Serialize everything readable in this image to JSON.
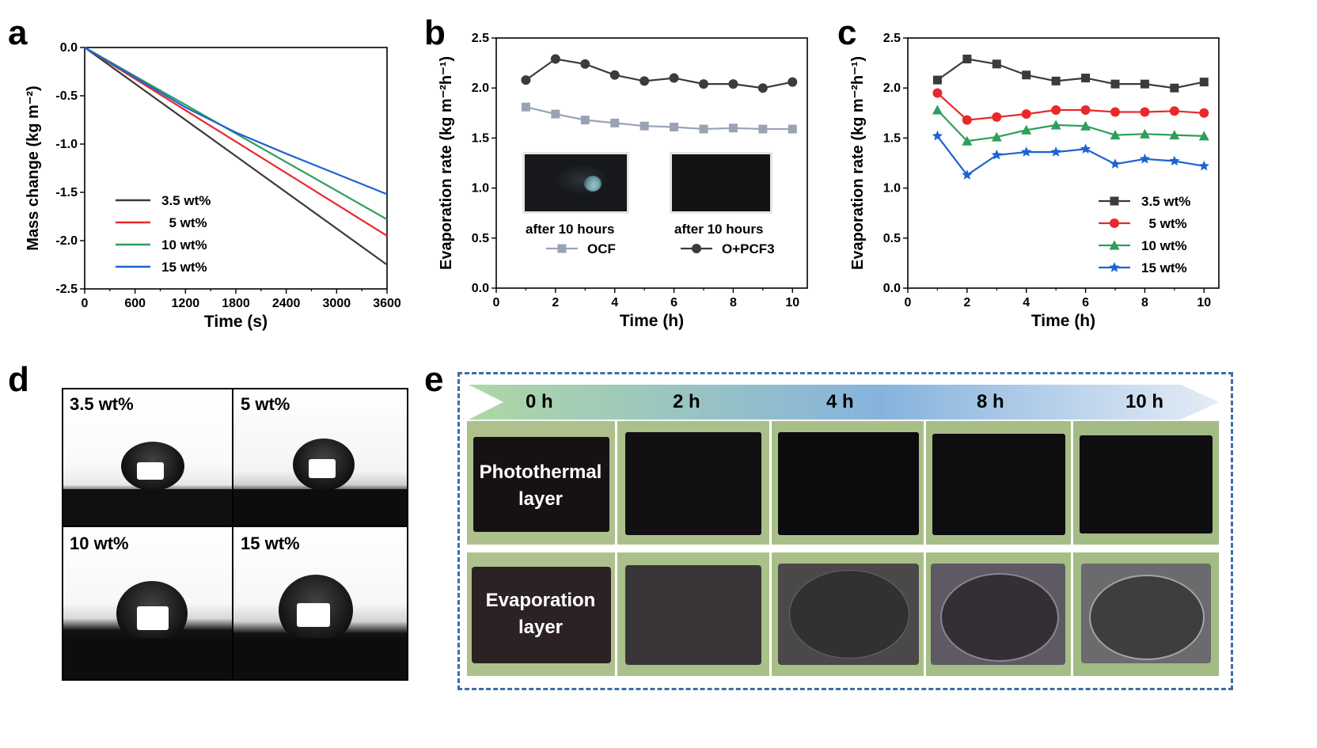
{
  "panels": {
    "a": "a",
    "b": "b",
    "c": "c",
    "d": "d",
    "e": "e"
  },
  "colors": {
    "black_series": "#3b3b3b",
    "red_series": "#e8282b",
    "green_series": "#2e9e5b",
    "blue_series": "#1f63d1",
    "ocf": "#9aa3b5",
    "opcf3": "#3b3b3b",
    "frame_dash": "#3d6fa4",
    "sample_bg": "#a8bf87"
  },
  "chart_data": [
    {
      "id": "a",
      "type": "line",
      "xlabel": "Time (s)",
      "ylabel": "Mass change (kg m⁻²)",
      "xlim": [
        0,
        3600
      ],
      "ylim": [
        -2.5,
        0.0
      ],
      "xticks": [
        "0",
        "600",
        "1200",
        "1800",
        "2400",
        "3000",
        "3600"
      ],
      "xtick_values": [
        0,
        600,
        1200,
        1800,
        2400,
        3000,
        3600
      ],
      "yticks": [
        "0.0",
        "-0.5",
        "-1.0",
        "-1.5",
        "-2.0",
        "-2.5"
      ],
      "ytick_values": [
        0.0,
        -0.5,
        -1.0,
        -1.5,
        -2.0,
        -2.5
      ],
      "legend_position": "bottom-left",
      "series": [
        {
          "name": "3.5 wt%",
          "x": [
            0,
            3600
          ],
          "y": [
            0.0,
            -2.25
          ]
        },
        {
          "name": "  5 wt%",
          "x": [
            0,
            3600
          ],
          "y": [
            0.0,
            -1.95
          ]
        },
        {
          "name": "10 wt%",
          "x": [
            0,
            3600
          ],
          "y": [
            0.0,
            -1.78
          ]
        },
        {
          "name": "15 wt%",
          "x": [
            0,
            1200,
            1800,
            2400,
            3600
          ],
          "y": [
            0.0,
            -0.62,
            -0.88,
            -1.1,
            -1.52
          ]
        }
      ]
    },
    {
      "id": "b",
      "type": "line",
      "xlabel": "Time (h)",
      "ylabel": "Evaporation rate (kg m⁻²h⁻¹)",
      "xlim": [
        0,
        10.5
      ],
      "ylim": [
        0.0,
        2.5
      ],
      "xticks": [
        "0",
        "2",
        "4",
        "6",
        "8",
        "10"
      ],
      "xtick_values": [
        0,
        2,
        4,
        6,
        8,
        10
      ],
      "yticks": [
        "0.0",
        "0.5",
        "1.0",
        "1.5",
        "2.0",
        "2.5"
      ],
      "ytick_values": [
        0.0,
        0.5,
        1.0,
        1.5,
        2.0,
        2.5
      ],
      "legend_position": "bottom",
      "x": [
        1,
        2,
        3,
        4,
        5,
        6,
        7,
        8,
        9,
        10
      ],
      "series": [
        {
          "name": "OCF",
          "marker": "square",
          "values": [
            1.81,
            1.74,
            1.68,
            1.65,
            1.62,
            1.61,
            1.59,
            1.6,
            1.59,
            1.59
          ]
        },
        {
          "name": "O+PCF3",
          "marker": "circle",
          "values": [
            2.08,
            2.29,
            2.24,
            2.13,
            2.07,
            2.1,
            2.04,
            2.04,
            2.0,
            2.06
          ]
        }
      ],
      "insets": [
        {
          "caption": "after 10 hours"
        },
        {
          "caption": "after 10 hours"
        }
      ]
    },
    {
      "id": "c",
      "type": "line",
      "xlabel": "Time (h)",
      "ylabel": "Evaporation rate (kg m⁻²h⁻¹)",
      "xlim": [
        0,
        10.5
      ],
      "ylim": [
        0.0,
        2.5
      ],
      "xticks": [
        "0",
        "2",
        "4",
        "6",
        "8",
        "10"
      ],
      "xtick_values": [
        0,
        2,
        4,
        6,
        8,
        10
      ],
      "yticks": [
        "0.0",
        "0.5",
        "1.0",
        "1.5",
        "2.0",
        "2.5"
      ],
      "ytick_values": [
        0.0,
        0.5,
        1.0,
        1.5,
        2.0,
        2.5
      ],
      "legend_position": "bottom-right",
      "x": [
        1,
        2,
        3,
        4,
        5,
        6,
        7,
        8,
        9,
        10
      ],
      "series": [
        {
          "name": "3.5 wt%",
          "marker": "square",
          "values": [
            2.08,
            2.29,
            2.24,
            2.13,
            2.07,
            2.1,
            2.04,
            2.04,
            2.0,
            2.06
          ]
        },
        {
          "name": "  5 wt%",
          "marker": "circle",
          "values": [
            1.95,
            1.68,
            1.71,
            1.74,
            1.78,
            1.78,
            1.76,
            1.76,
            1.77,
            1.75
          ]
        },
        {
          "name": "10 wt%",
          "marker": "triangle",
          "values": [
            1.78,
            1.47,
            1.51,
            1.58,
            1.63,
            1.62,
            1.53,
            1.54,
            1.53,
            1.52
          ]
        },
        {
          "name": "15 wt%",
          "marker": "star",
          "values": [
            1.52,
            1.13,
            1.33,
            1.36,
            1.36,
            1.39,
            1.24,
            1.29,
            1.27,
            1.22
          ]
        }
      ]
    }
  ],
  "panel_d": {
    "labels": [
      "3.5 wt%",
      "5 wt%",
      "10 wt%",
      "15 wt%"
    ]
  },
  "panel_e": {
    "times": [
      "0 h",
      "2 h",
      "4 h",
      "8 h",
      "10 h"
    ],
    "row_labels": [
      {
        "line1": "Photothermal",
        "line2": "layer"
      },
      {
        "line1": "Evaporation",
        "line2": "layer"
      }
    ]
  }
}
